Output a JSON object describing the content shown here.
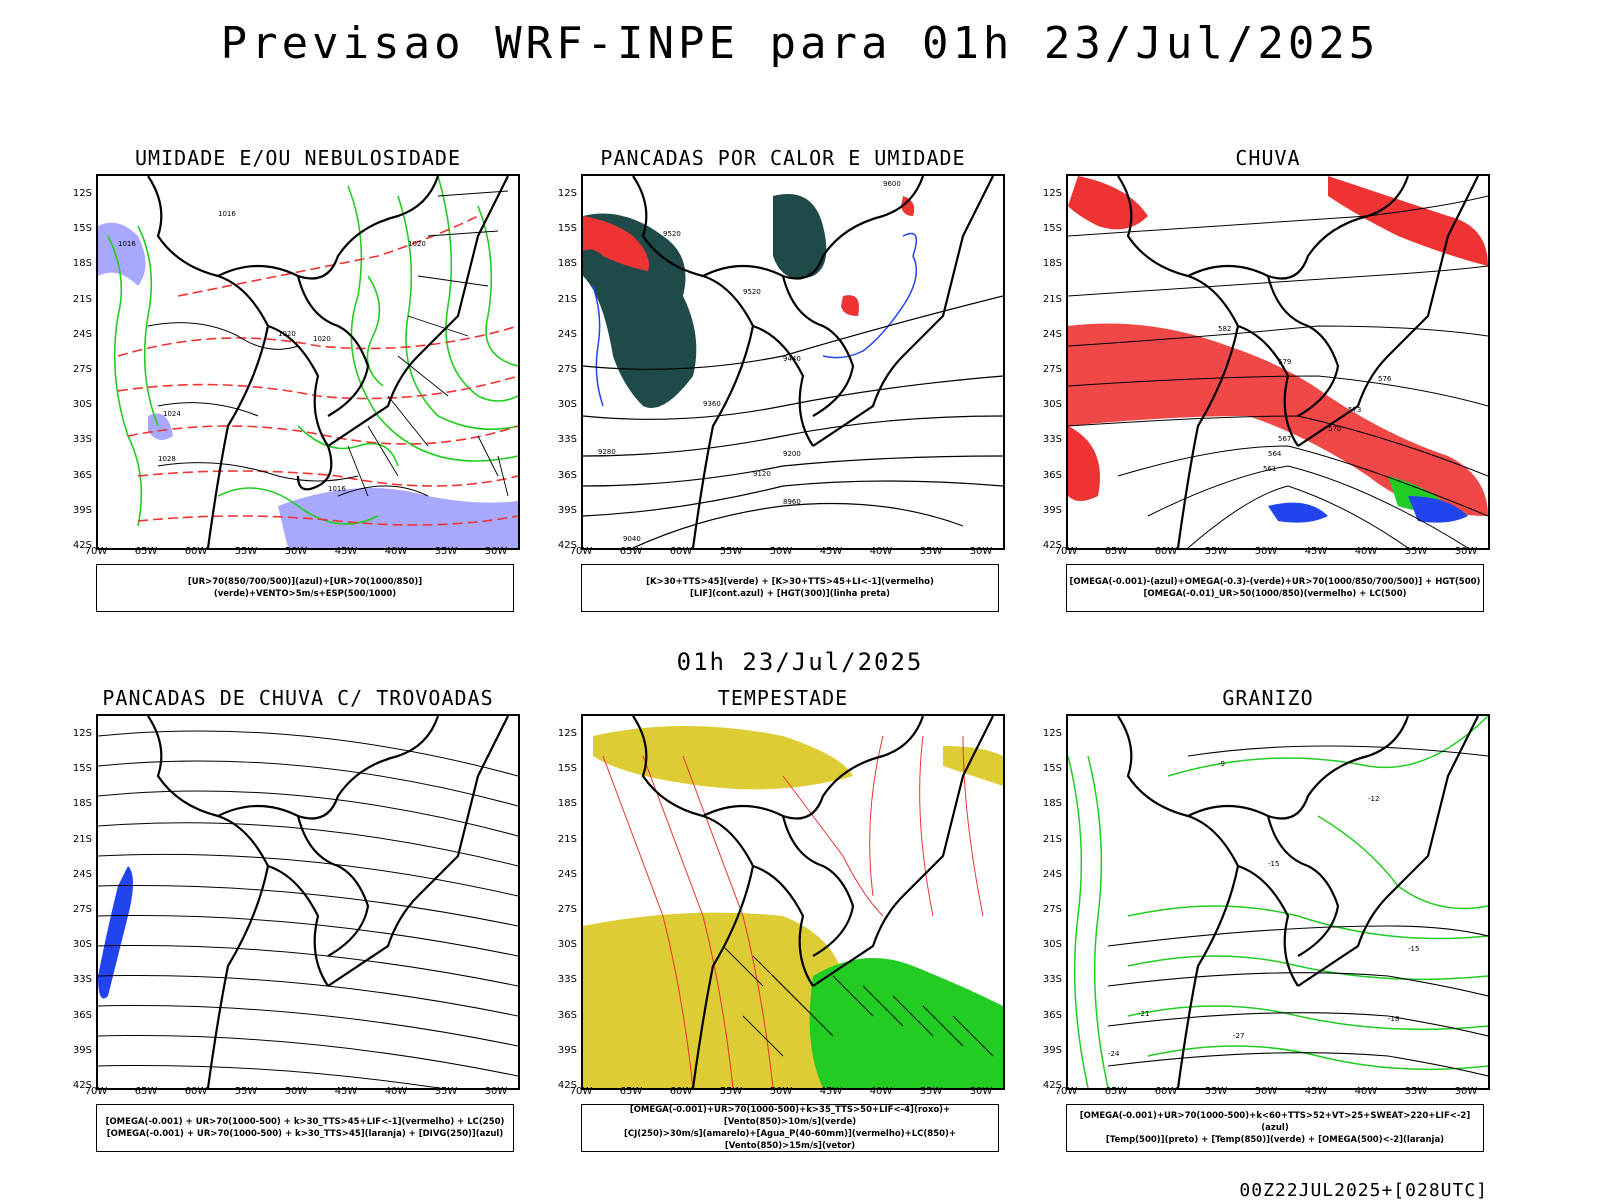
{
  "title": "Previsao WRF-INPE  para 01h 23/Jul/2025",
  "mid_date": "01h 23/Jul/2025",
  "footer": "00Z22JUL2025+[028UTC]",
  "lat_ticks": [
    "12S",
    "15S",
    "18S",
    "21S",
    "24S",
    "27S",
    "30S",
    "33S",
    "36S",
    "39S",
    "42S"
  ],
  "lon_ticks": [
    "70W",
    "65W",
    "60W",
    "55W",
    "50W",
    "45W",
    "40W",
    "35W",
    "30W"
  ],
  "panels": [
    {
      "title": "UMIDADE E/OU NEBULOSIDADE",
      "legend": [
        "[UR>70(850/700/500)](azul)+[UR>70(1000/850)](verde)+VENTO>5m/s+ESP(500/1000)"
      ]
    },
    {
      "title": "PANCADAS POR CALOR E UMIDADE",
      "legend": [
        "[K>30+TTS>45](verde) + [K>30+TTS>45+LI<-1](vermelho)",
        "[LIF](cont.azul) + [HGT(300)](linha preta)"
      ]
    },
    {
      "title": "CHUVA",
      "legend": [
        "[OMEGA(-0.001)-(azul)+OMEGA(-0.3)-(verde)+UR>70(1000/850/700/500)] + HGT(500)",
        "[OMEGA(-0.01)_UR>50(1000/850)(vermelho) + LC(500)"
      ]
    },
    {
      "title": "PANCADAS DE CHUVA C/ TROVOADAS",
      "legend": [
        "[OMEGA(-0.001) + UR>70(1000-500) + k>30_TTS>45+LIF<-1](vermelho) + LC(250)",
        "[OMEGA(-0.001) + UR>70(1000-500) + k>30_TTS>45](laranja) + [DIVG(250)](azul)"
      ]
    },
    {
      "title": "TEMPESTADE",
      "legend": [
        "[OMEGA(-0.001)+UR>70(1000-500)+k>35_TTS>50+LIF<-4](roxo)+[Vento(850)>10m/s](verde)",
        "[CJ(250)>30m/s](amarelo)+[Agua_P(40-60mm)](vermelho)+LC(850)+[Vento(850)>15m/s](vetor)"
      ]
    },
    {
      "title": "GRANIZO",
      "legend": [
        "[OMEGA(-0.001)+UR>70(1000-500)+k<60+TTS>52+VT>25+SWEAT>220+LIF<-2](azul)",
        "[Temp(500)](preto) + [Temp(850)](verde) + [OMEGA(500)<-2](laranja)"
      ]
    }
  ],
  "contour_labels": {
    "p1": [
      "1016",
      "1016",
      "1020",
      "1020",
      "1020",
      "1024",
      "1028",
      "1016"
    ],
    "p2": [
      "9600",
      "9520",
      "9520",
      "9440",
      "9360",
      "9280",
      "9200",
      "9120",
      "9040",
      "8960"
    ],
    "p3": [
      "582",
      "579",
      "576",
      "573",
      "570",
      "567",
      "564",
      "561"
    ],
    "p6": [
      "-9",
      "-12",
      "-15",
      "-15",
      "-18",
      "-21",
      "-24",
      "-27"
    ]
  },
  "colors": {
    "humid_blue": "#a8a8ff",
    "green": "#22cc22",
    "red": "#ee3333",
    "dark_teal": "#1e4a4a",
    "yellow": "#ddcc33",
    "blue": "#2244ee",
    "orange": "#ee8833"
  }
}
